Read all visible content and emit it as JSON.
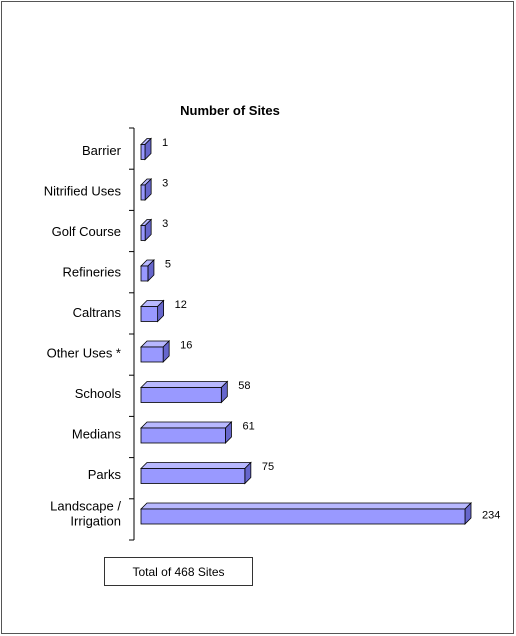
{
  "chart_data": {
    "type": "bar",
    "orientation": "horizontal",
    "style": "3d",
    "title": "Number of Sites",
    "categories": [
      "Barrier",
      "Nitrified Uses",
      "Golf Course",
      "Refineries",
      "Caltrans",
      "Other Uses *",
      "Schools",
      "Medians",
      "Parks",
      "Landscape / Irrigation"
    ],
    "values": [
      1,
      3,
      3,
      5,
      12,
      16,
      58,
      61,
      75,
      234
    ],
    "data_labels": [
      "1",
      "3",
      "3",
      "5",
      "12",
      "16",
      "58",
      "61",
      "75",
      "234"
    ],
    "xlim": [
      0,
      234
    ],
    "grid": false,
    "legend": "none",
    "bar_color": "#9999ff",
    "bar_top_color": "#b8b8ff",
    "bar_side_color": "#6666cc",
    "annotation": "Total of 468 Sites"
  }
}
